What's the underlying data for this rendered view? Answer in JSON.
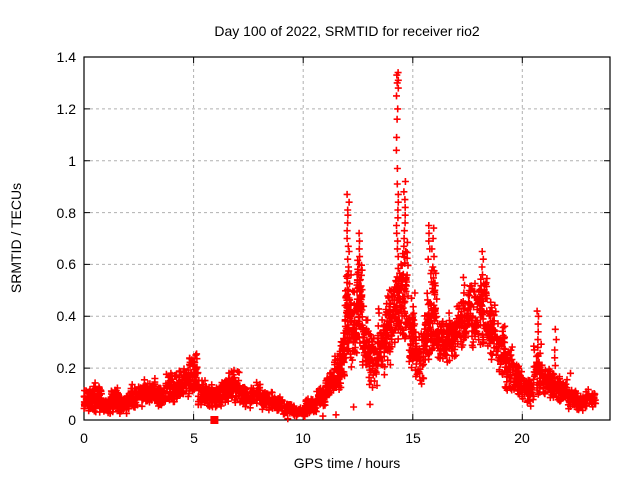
{
  "chart_data": {
    "type": "scatter",
    "title": "Day 100 of 2022, SRMTID for receiver rio2",
    "xlabel": "GPS time / hours",
    "ylabel": "SRMTID / TECUs",
    "xlim": [
      0,
      24
    ],
    "ylim": [
      0,
      1.4
    ],
    "xticks": {
      "values": [
        0,
        5,
        10,
        15,
        20
      ],
      "labels": [
        "0",
        "5",
        "10",
        "15",
        "20"
      ]
    },
    "yticks": {
      "values": [
        0,
        0.2,
        0.4,
        0.6,
        0.8,
        1.0,
        1.2,
        1.4
      ],
      "labels": [
        "0",
        "0.2",
        "0.4",
        "0.6",
        "0.8",
        "1",
        "1.2",
        "1.4"
      ]
    },
    "grid": true,
    "legend": "none",
    "marker": "plus",
    "marker_color": "#ff0000",
    "grid_color": "#b0b0b0",
    "axis_color": "#000000",
    "peak": {
      "x": 14.3,
      "y": 1.34
    },
    "density_bands": [
      [
        0.0,
        0.4,
        0.03,
        0.13,
        55
      ],
      [
        0.4,
        0.8,
        0.02,
        0.15,
        55
      ],
      [
        0.8,
        1.2,
        0.02,
        0.09,
        50
      ],
      [
        1.2,
        1.6,
        0.03,
        0.13,
        55
      ],
      [
        1.6,
        2.1,
        0.02,
        0.1,
        55
      ],
      [
        2.1,
        2.7,
        0.04,
        0.14,
        60
      ],
      [
        2.7,
        3.3,
        0.05,
        0.17,
        60
      ],
      [
        3.3,
        3.7,
        0.04,
        0.13,
        50
      ],
      [
        3.7,
        4.3,
        0.06,
        0.19,
        60
      ],
      [
        4.3,
        4.8,
        0.07,
        0.21,
        55
      ],
      [
        4.8,
        5.2,
        0.08,
        0.27,
        45
      ],
      [
        5.2,
        5.6,
        0.05,
        0.16,
        45
      ],
      [
        5.6,
        6.1,
        0.04,
        0.14,
        50
      ],
      [
        6.1,
        6.6,
        0.05,
        0.16,
        50
      ],
      [
        6.6,
        7.1,
        0.06,
        0.2,
        50
      ],
      [
        7.1,
        7.6,
        0.04,
        0.14,
        50
      ],
      [
        7.6,
        8.1,
        0.05,
        0.15,
        50
      ],
      [
        8.1,
        8.6,
        0.03,
        0.12,
        50
      ],
      [
        8.6,
        9.1,
        0.03,
        0.1,
        45
      ],
      [
        9.1,
        9.6,
        0.015,
        0.07,
        45
      ],
      [
        9.6,
        10.1,
        0.01,
        0.05,
        45
      ],
      [
        10.1,
        10.6,
        0.02,
        0.09,
        45
      ],
      [
        10.6,
        11.0,
        0.04,
        0.13,
        45
      ],
      [
        11.0,
        11.35,
        0.07,
        0.19,
        40
      ],
      [
        11.35,
        11.65,
        0.1,
        0.26,
        40
      ],
      [
        11.65,
        11.9,
        0.12,
        0.36,
        40
      ],
      [
        11.9,
        12.2,
        0.18,
        0.6,
        65
      ],
      [
        12.2,
        12.45,
        0.18,
        0.5,
        45
      ],
      [
        12.45,
        12.7,
        0.25,
        0.64,
        55
      ],
      [
        12.7,
        13.0,
        0.18,
        0.45,
        50
      ],
      [
        13.0,
        13.4,
        0.1,
        0.36,
        50
      ],
      [
        13.4,
        13.8,
        0.15,
        0.45,
        55
      ],
      [
        13.8,
        14.1,
        0.2,
        0.55,
        55
      ],
      [
        14.1,
        14.45,
        0.24,
        0.62,
        60
      ],
      [
        14.45,
        14.8,
        0.24,
        0.7,
        60
      ],
      [
        14.8,
        15.1,
        0.18,
        0.5,
        50
      ],
      [
        15.1,
        15.5,
        0.1,
        0.36,
        50
      ],
      [
        15.5,
        15.8,
        0.18,
        0.5,
        50
      ],
      [
        15.8,
        16.1,
        0.22,
        0.6,
        55
      ],
      [
        16.1,
        16.5,
        0.2,
        0.4,
        55
      ],
      [
        16.5,
        17.0,
        0.22,
        0.42,
        60
      ],
      [
        17.0,
        17.5,
        0.24,
        0.5,
        60
      ],
      [
        17.5,
        18.0,
        0.27,
        0.55,
        60
      ],
      [
        18.0,
        18.4,
        0.28,
        0.6,
        60
      ],
      [
        18.4,
        18.8,
        0.2,
        0.5,
        55
      ],
      [
        18.8,
        19.2,
        0.15,
        0.4,
        50
      ],
      [
        19.2,
        19.6,
        0.1,
        0.3,
        50
      ],
      [
        19.6,
        20.0,
        0.08,
        0.22,
        50
      ],
      [
        20.0,
        20.5,
        0.05,
        0.18,
        50
      ],
      [
        20.5,
        20.9,
        0.08,
        0.3,
        45
      ],
      [
        20.9,
        21.3,
        0.07,
        0.22,
        45
      ],
      [
        21.3,
        21.7,
        0.06,
        0.2,
        40
      ],
      [
        21.7,
        22.1,
        0.05,
        0.16,
        40
      ],
      [
        22.1,
        22.5,
        0.04,
        0.12,
        40
      ],
      [
        22.5,
        22.9,
        0.03,
        0.11,
        40
      ],
      [
        22.9,
        23.35,
        0.04,
        0.12,
        40
      ]
    ],
    "spike_columns": [
      {
        "x": 12.05,
        "y": [
          0.87,
          0.84,
          0.81,
          0.79,
          0.76,
          0.73,
          0.7,
          0.67,
          0.65,
          0.62,
          0.59,
          0.56,
          0.53,
          0.5,
          0.47,
          0.44,
          0.41,
          0.38
        ]
      },
      {
        "x": 12.55,
        "y": [
          0.72,
          0.69,
          0.66,
          0.63,
          0.6,
          0.57,
          0.54,
          0.51,
          0.48,
          0.45,
          0.42
        ]
      },
      {
        "x": 14.3,
        "y": [
          1.34,
          1.33,
          1.31,
          1.3,
          1.28,
          1.25,
          1.2,
          1.16,
          1.09,
          1.04,
          0.97,
          0.91,
          0.87,
          0.84,
          0.81,
          0.78,
          0.75,
          0.72,
          0.69,
          0.66,
          0.63
        ]
      },
      {
        "x": 14.62,
        "y": [
          0.92,
          0.88,
          0.85,
          0.82,
          0.79,
          0.76,
          0.73,
          0.7,
          0.67
        ]
      },
      {
        "x": 15.75,
        "y": [
          0.75,
          0.72,
          0.69,
          0.66,
          0.62
        ]
      },
      {
        "x": 15.92,
        "y": [
          0.74,
          0.7,
          0.66,
          0.63,
          0.59
        ]
      },
      {
        "x": 17.35,
        "y": [
          0.55,
          0.52,
          0.49
        ]
      },
      {
        "x": 18.2,
        "y": [
          0.65,
          0.62,
          0.59,
          0.56
        ]
      },
      {
        "x": 20.7,
        "y": [
          0.42,
          0.4,
          0.37,
          0.34,
          0.31,
          0.28,
          0.25
        ]
      },
      {
        "x": 21.5,
        "y": [
          0.35,
          0.31,
          0.27,
          0.24,
          0.21
        ]
      }
    ],
    "outliers": [
      [
        11.5,
        0.02
      ],
      [
        12.3,
        0.05
      ],
      [
        13.05,
        0.06
      ],
      [
        9.3,
        0.005
      ],
      [
        10.9,
        0.015
      ],
      [
        22.2,
        0.18
      ]
    ],
    "special_points": [
      {
        "x": 5.95,
        "y": 0.0,
        "marker": "filled-square",
        "size": 8
      }
    ]
  }
}
